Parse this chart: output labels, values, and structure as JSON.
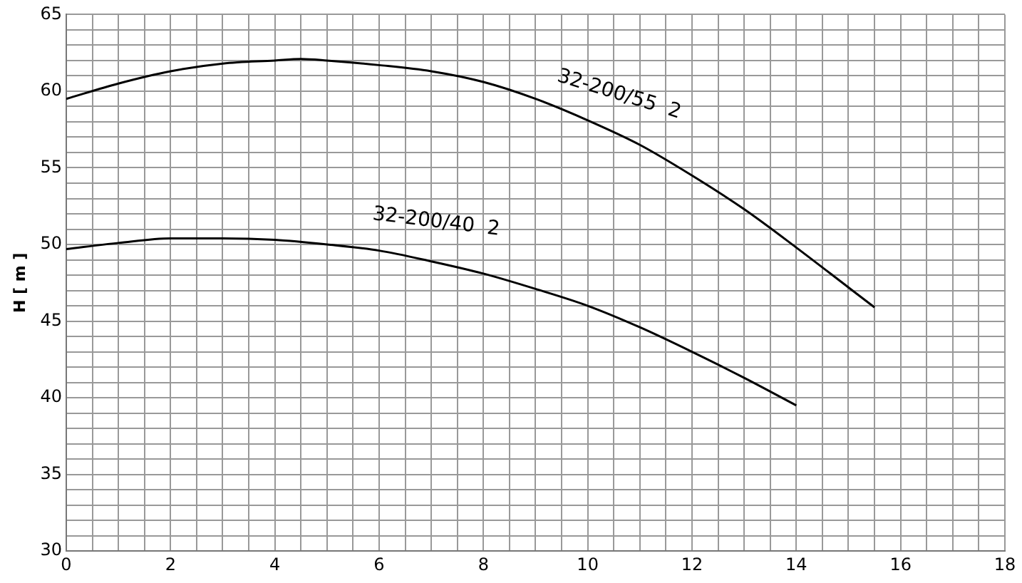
{
  "chart_data": {
    "type": "line",
    "ylabel": "H [ m ]",
    "series": [
      {
        "name": "32-200/55  2",
        "color": "#000000",
        "x": [
          0,
          1,
          2,
          3,
          4,
          4.5,
          5,
          6,
          7,
          8,
          9,
          10,
          11,
          12,
          13,
          14,
          15,
          15.5
        ],
        "values": [
          59.5,
          60.5,
          61.3,
          61.8,
          62,
          62.1,
          62,
          61.7,
          61.3,
          60.6,
          59.5,
          58.1,
          56.5,
          54.5,
          52.3,
          49.8,
          47.2,
          45.9
        ]
      },
      {
        "name": "32-200/40  2",
        "color": "#000000",
        "x": [
          0,
          1,
          2,
          3,
          4,
          5,
          6,
          7,
          8,
          9,
          10,
          11,
          12,
          13,
          14
        ],
        "values": [
          49.7,
          50.1,
          50.4,
          50.4,
          50.3,
          50,
          49.6,
          48.9,
          48.1,
          47.1,
          46,
          44.6,
          43,
          41.3,
          39.5
        ]
      }
    ],
    "xlim": [
      0,
      18
    ],
    "ylim": [
      30,
      65
    ],
    "xticks": [
      0,
      {
        "value": 0.5,
        "label": null
      },
      {
        "value": 1,
        "label": null
      },
      {
        "value": 1.5,
        "label": null
      },
      2,
      {
        "value": 2.5,
        "label": null
      },
      {
        "value": 3,
        "label": null
      },
      {
        "value": 3.5,
        "label": null
      },
      4,
      {
        "value": 4.5,
        "label": null
      },
      {
        "value": 5,
        "label": null
      },
      {
        "value": 5.5,
        "label": null
      },
      6,
      {
        "value": 6.5,
        "label": null
      },
      {
        "value": 7,
        "label": null
      },
      {
        "value": 7.5,
        "label": null
      },
      8,
      {
        "value": 8.5,
        "label": null
      },
      {
        "value": 9,
        "label": null
      },
      {
        "value": 9.5,
        "label": null
      },
      10,
      {
        "value": 10.5,
        "label": null
      },
      {
        "value": 11,
        "label": null
      },
      {
        "value": 11.5,
        "label": null
      },
      12,
      {
        "value": 12.5,
        "label": null
      },
      {
        "value": 13,
        "label": null
      },
      {
        "value": 13.5,
        "label": null
      },
      14,
      {
        "value": 14.5,
        "label": null
      },
      {
        "value": 15,
        "label": null
      },
      {
        "value": 15.5,
        "label": null
      },
      16,
      {
        "value": 16.5,
        "label": null
      },
      {
        "value": 17,
        "label": null
      },
      {
        "value": 17.5,
        "label": null
      },
      18
    ],
    "yticks": [
      30,
      {
        "value": 31,
        "label": null
      },
      {
        "value": 32,
        "label": null
      },
      {
        "value": 33,
        "label": null
      },
      {
        "value": 34,
        "label": null
      },
      35,
      {
        "value": 36,
        "label": null
      },
      {
        "value": 37,
        "label": null
      },
      {
        "value": 38,
        "label": null
      },
      {
        "value": 39,
        "label": null
      },
      40,
      {
        "value": 41,
        "label": null
      },
      {
        "value": 42,
        "label": null
      },
      {
        "value": 43,
        "label": null
      },
      {
        "value": 44,
        "label": null
      },
      45,
      {
        "value": 46,
        "label": null
      },
      {
        "value": 47,
        "label": null
      },
      {
        "value": 48,
        "label": null
      },
      {
        "value": 49,
        "label": null
      },
      50,
      {
        "value": 51,
        "label": null
      },
      {
        "value": 52,
        "label": null
      },
      {
        "value": 53,
        "label": null
      },
      {
        "value": 54,
        "label": null
      },
      55,
      {
        "value": 56,
        "label": null
      },
      {
        "value": 57,
        "label": null
      },
      {
        "value": 58,
        "label": null
      },
      {
        "value": 59,
        "label": null
      },
      60,
      {
        "value": 61,
        "label": null
      },
      {
        "value": 62,
        "label": null
      },
      {
        "value": 63,
        "label": null
      },
      {
        "value": 64,
        "label": null
      },
      65
    ],
    "grid": true,
    "marker": "none",
    "line_style": "solid"
  }
}
